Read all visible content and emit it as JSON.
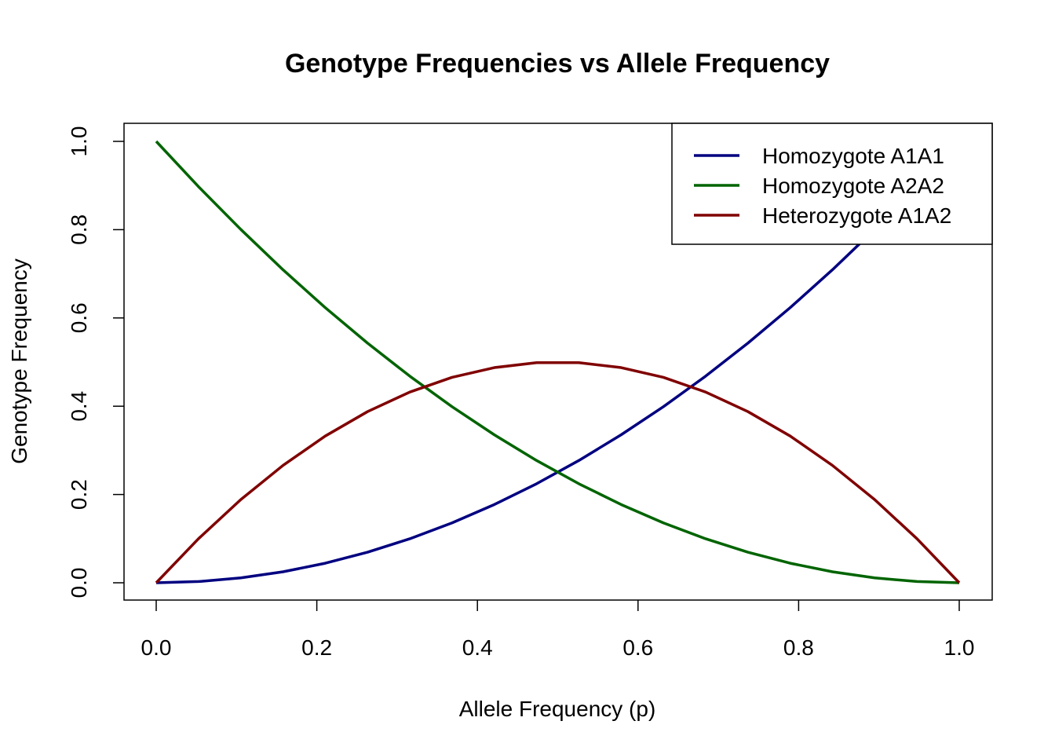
{
  "chart_data": {
    "type": "line",
    "title": "Genotype Frequencies vs Allele Frequency",
    "xlabel": "Allele Frequency (p)",
    "ylabel": "Genotype Frequency",
    "xlim": [
      0,
      1
    ],
    "ylim": [
      0,
      1
    ],
    "x_ticks": [
      "0.0",
      "0.2",
      "0.4",
      "0.6",
      "0.8",
      "1.0"
    ],
    "y_ticks": [
      "0.0",
      "0.2",
      "0.4",
      "0.6",
      "0.8",
      "1.0"
    ],
    "grid": false,
    "legend_position": "top-right",
    "x": [
      0,
      0.0526,
      0.1053,
      0.1579,
      0.2105,
      0.2632,
      0.3158,
      0.3684,
      0.4211,
      0.4737,
      0.5263,
      0.5789,
      0.6316,
      0.6842,
      0.7368,
      0.7895,
      0.8421,
      0.8947,
      0.9474,
      1
    ],
    "series": [
      {
        "name": "Homozygote A1A1",
        "color": "#000080",
        "values": [
          0,
          0.0028,
          0.0111,
          0.0249,
          0.0443,
          0.0693,
          0.0997,
          0.1357,
          0.1773,
          0.2244,
          0.277,
          0.3352,
          0.3989,
          0.4681,
          0.5429,
          0.6233,
          0.7091,
          0.8006,
          0.8975,
          1
        ]
      },
      {
        "name": "Homozygote A2A2",
        "color": "#006400",
        "values": [
          1,
          0.8975,
          0.8006,
          0.7091,
          0.6233,
          0.5429,
          0.4681,
          0.3989,
          0.3352,
          0.277,
          0.2244,
          0.1773,
          0.1357,
          0.0997,
          0.0693,
          0.0443,
          0.0249,
          0.0111,
          0.0028,
          0
        ]
      },
      {
        "name": "Heterozygote A1A2",
        "color": "#800000",
        "values": [
          0,
          0.0997,
          0.1884,
          0.2659,
          0.3324,
          0.3878,
          0.4321,
          0.4654,
          0.4875,
          0.4986,
          0.4986,
          0.4875,
          0.4654,
          0.4321,
          0.3878,
          0.3324,
          0.2659,
          0.1884,
          0.0997,
          0
        ]
      }
    ]
  }
}
